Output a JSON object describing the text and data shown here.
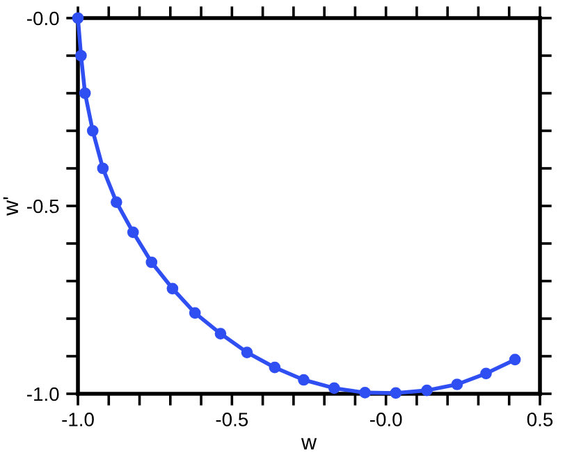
{
  "chart_data": {
    "type": "line",
    "xlabel": "w",
    "ylabel": "w'",
    "marker": "circle",
    "line_style": "solid",
    "grid": false,
    "legend": false,
    "x": [
      -1,
      -0.99,
      -0.977,
      -0.952,
      -0.919,
      -0.875,
      -0.821,
      -0.761,
      -0.693,
      -0.62,
      -0.537,
      -0.451,
      -0.361,
      -0.267,
      -0.168,
      -0.068,
      0.032,
      0.133,
      0.231,
      0.325,
      0.419
    ],
    "series": [
      {
        "color": "#2f4ff2",
        "values": [
          0,
          -0.1,
          -0.2,
          -0.3,
          -0.4,
          -0.49,
          -0.57,
          -0.65,
          -0.72,
          -0.785,
          -0.84,
          -0.89,
          -0.93,
          -0.963,
          -0.985,
          -0.997,
          -0.998,
          -0.991,
          -0.975,
          -0.946,
          -0.909
        ]
      }
    ],
    "xlim": [
      -1,
      0.5
    ],
    "ylim": [
      -1,
      0
    ],
    "xticks": [
      {
        "value": -1,
        "label": "-1.0"
      },
      {
        "value": -0.9,
        "label": null
      },
      {
        "value": -0.8,
        "label": null
      },
      {
        "value": -0.7,
        "label": null
      },
      {
        "value": -0.6,
        "label": null
      },
      {
        "value": -0.5,
        "label": "-0.5"
      },
      {
        "value": -0.4,
        "label": null
      },
      {
        "value": -0.3,
        "label": null
      },
      {
        "value": -0.2,
        "label": null
      },
      {
        "value": -0.1,
        "label": null
      },
      {
        "value": 0,
        "label": "-0.0"
      },
      {
        "value": 0.1,
        "label": null
      },
      {
        "value": 0.2,
        "label": null
      },
      {
        "value": 0.3,
        "label": null
      },
      {
        "value": 0.4,
        "label": null
      },
      {
        "value": 0.5,
        "label": "0.5"
      }
    ],
    "yticks": [
      {
        "value": -1,
        "label": "-1.0"
      },
      {
        "value": -0.9,
        "label": null
      },
      {
        "value": -0.8,
        "label": null
      },
      {
        "value": -0.7,
        "label": null
      },
      {
        "value": -0.6,
        "label": null
      },
      {
        "value": -0.5,
        "label": "-0.5"
      },
      {
        "value": -0.4,
        "label": null
      },
      {
        "value": -0.3,
        "label": null
      },
      {
        "value": -0.2,
        "label": null
      },
      {
        "value": -0.1,
        "label": null
      },
      {
        "value": 0,
        "label": "-0.0"
      }
    ]
  }
}
